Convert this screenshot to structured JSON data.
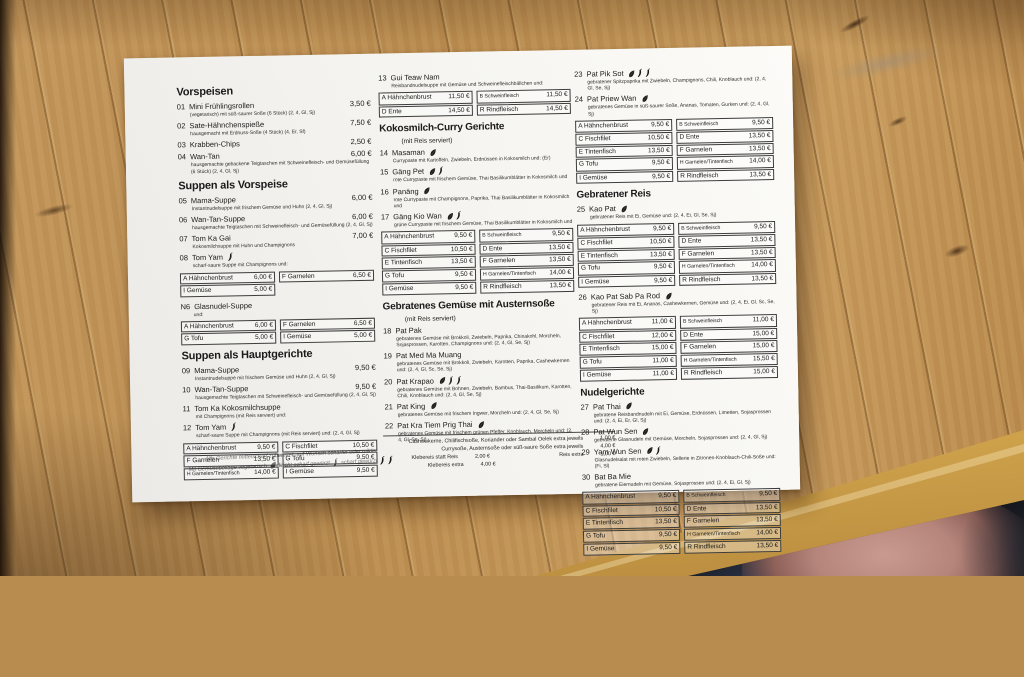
{
  "scene": {
    "wood_color": "#bb8d50",
    "table_edge_color": "#e6bd66",
    "under_table_color": "#121217",
    "knee_skin_color": "#b5857b",
    "paper_color": "#f4f3ef",
    "text_color": "#1b1b1b"
  },
  "menu": {
    "columns": [
      {
        "sections": [
          {
            "title": "Vorspeisen",
            "entries": [
              {
                "kind": "item",
                "num": "01",
                "name": "Mini Frühlingsrollen",
                "price": "3,50 €",
                "desc": "(vegetarisch) mit süß-saurer Soße (6 Stück) (2, 4, Gl, Sj)"
              },
              {
                "kind": "item",
                "num": "02",
                "name": "Sate-Hähnchenspieße",
                "price": "7,50 €",
                "desc": "hausgemacht mit Erdnuss-Soße (4 Stück) (4, Er, Sf)"
              },
              {
                "kind": "item",
                "num": "03",
                "name": "Krabben-Chips",
                "price": "2,50 €"
              },
              {
                "kind": "item",
                "num": "04",
                "name": "Wan-Tan",
                "price": "6,00 €",
                "desc": "hausgemachte gebackene Teigtaschen mit Schweinefleisch- und Gemüsefüllung (6 Stück) (2, 4, Gl, Sj)"
              }
            ]
          },
          {
            "title": "Suppen als Vorspeise",
            "entries": [
              {
                "kind": "item",
                "num": "05",
                "name": "Mama-Suppe",
                "price": "6,00 €",
                "desc": "Instantnudelsuppe mit frischem Gemüse und Huhn (2, 4, Gl, Sj)"
              },
              {
                "kind": "item",
                "num": "06",
                "name": "Wan-Tan-Suppe",
                "price": "6,00 €",
                "desc": "hausgemachte Teigtaschen mit Schweinefleisch- und Gemüsefüllung (2, 4, Gl, Sj)"
              },
              {
                "kind": "item",
                "num": "07",
                "name": "Tom Ka Gai",
                "price": "7,00 €",
                "desc": "Kokosmilchsuppe mit Huhn und Champignons"
              },
              {
                "kind": "item",
                "num": "08",
                "name": "Tom Yam",
                "icons": [
                  "chili-icon"
                ],
                "desc": "scharf-saure Suppe mit Champignons und:"
              },
              {
                "kind": "table",
                "cells": [
                  [
                    "A Hähnchenbrust",
                    "6,00 €"
                  ],
                  [
                    "F Garnelen",
                    "6,50 €"
                  ],
                  [
                    "I Gemüse",
                    "5,00 €"
                  ]
                ]
              },
              {
                "kind": "item",
                "num": "N6",
                "name": "Glasnudel-Suppe",
                "desc": "und:"
              },
              {
                "kind": "table",
                "cells": [
                  [
                    "A Hähnchenbrust",
                    "6,00 €"
                  ],
                  [
                    "F Garnelen",
                    "6,50 €"
                  ],
                  [
                    "G Tofu",
                    "5,00 €"
                  ],
                  [
                    "I Gemüse",
                    "5,00 €"
                  ]
                ]
              }
            ]
          },
          {
            "title": "Suppen als Hauptgerichte",
            "entries": [
              {
                "kind": "item",
                "num": "09",
                "name": "Mama-Suppe",
                "price": "9,50 €",
                "desc": "Instantnudelsuppe mit frischem Gemüse und Huhn (2, 4, Gl, Sj)"
              },
              {
                "kind": "item",
                "num": "10",
                "name": "Wan-Tan-Suppe",
                "price": "9,50 €",
                "desc": "hausgemachte Teigtaschen mit Schweinefleisch- und Gemüsefüllung (2, 4, Gl, Sj)"
              },
              {
                "kind": "item",
                "num": "11",
                "name": "Tom Ka Kokosmilchsuppe",
                "desc": "mit Champignons (mit Reis serviert) und:"
              },
              {
                "kind": "item",
                "num": "12",
                "name": "Tom Yam",
                "icons": [
                  "chili-icon"
                ],
                "desc": "scharf-saure Suppe mit Champignons (mit Reis serviert) und: (2, 4, Gl, Sj)"
              },
              {
                "kind": "table",
                "cells": [
                  [
                    "A Hähnchenbrust",
                    "9,50 €"
                  ],
                  [
                    "C Fischfilet",
                    "10,50 €"
                  ],
                  [
                    "F Garnelen",
                    "13,50 €"
                  ],
                  [
                    "G Tofu",
                    "9,50 €"
                  ],
                  [
                    "H Garnelen/Tintenfisch",
                    "14,00 €"
                  ],
                  [
                    "I Gemüse",
                    "9,50 €"
                  ]
                ]
              }
            ]
          }
        ]
      },
      {
        "sections": [
          {
            "title": null,
            "entries": [
              {
                "kind": "item",
                "num": "13",
                "name": "Gui Teaw Nam",
                "desc": "Reisbandnudelsuppe mit Gemüse und Schweinefleischbällchen und:"
              },
              {
                "kind": "table",
                "cells": [
                  [
                    "A Hähnchenbrust",
                    "11,50 €"
                  ],
                  [
                    "B Schweinfleisch",
                    "11,50 €"
                  ],
                  [
                    "D Ente",
                    "14,50 €"
                  ],
                  [
                    "R Rindfleisch",
                    "14,50 €"
                  ]
                ]
              }
            ]
          },
          {
            "title": "Kokosmilch-Curry Gerichte",
            "subtitle": "(mit Reis serviert)",
            "entries": [
              {
                "kind": "item",
                "num": "14",
                "name": "Masaman",
                "icons": [
                  "leaf-icon"
                ],
                "desc": "Currypaste mit Kartoffeln, Zwiebeln, Erdnüssen in Kokosmilch und: (Er)"
              },
              {
                "kind": "item",
                "num": "15",
                "name": "Gäng Pet",
                "icons": [
                  "leaf-icon",
                  "chili-icon"
                ],
                "desc": "rote Currypaste mit frischem Gemüse, Thai Basilikumblätter in Kokosmilch und"
              },
              {
                "kind": "item",
                "num": "16",
                "name": "Panäng",
                "icons": [
                  "leaf-icon"
                ],
                "desc": "rote Currypaste mit Champignons, Paprika, Thai Basilikumblätter in Kokosmilch und"
              },
              {
                "kind": "item",
                "num": "17",
                "name": "Gäng Kio Wan",
                "icons": [
                  "leaf-icon",
                  "chili-icon"
                ],
                "desc": "grüne Currypaste mit frischem Gemüse, Thai Basilikumblätter in Kokosmilch und"
              },
              {
                "kind": "table",
                "cells": [
                  [
                    "A Hähnchenbrust",
                    "9,50 €"
                  ],
                  [
                    "B Schweinfleisch",
                    "9,50 €"
                  ],
                  [
                    "C Fischfilet",
                    "10,50 €"
                  ],
                  [
                    "D Ente",
                    "13,50 €"
                  ],
                  [
                    "E Tintenfisch",
                    "13,50 €"
                  ],
                  [
                    "F Garnelen",
                    "13,50 €"
                  ],
                  [
                    "G Tofu",
                    "9,50 €"
                  ],
                  [
                    "H Garnelen/Tintenfisch",
                    "14,00 €"
                  ],
                  [
                    "I Gemüse",
                    "9,50 €"
                  ],
                  [
                    "R Rindfleisch",
                    "13,50 €"
                  ]
                ]
              }
            ]
          },
          {
            "title": "Gebratenes Gemüse mit Austernsoße",
            "subtitle": "(mit Reis serviert)",
            "entries": [
              {
                "kind": "item",
                "num": "18",
                "name": "Pat Pak",
                "desc": "gebratenes Gemüse mit Brokkoli, Zwiebeln, Paprika, Chinakohl, Morcheln, Sojasprossen, Karotten, Champignons und: (2, 4, Gl, Se, Sj)"
              },
              {
                "kind": "item",
                "num": "19",
                "name": "Pat Med Ma Muang",
                "desc": "gebratenes Gemüse mit Brokkoli, Zwiebeln, Karotten, Paprika, Cashewkernen und: (2, 4, Gl, Sc, Se, Sj)"
              },
              {
                "kind": "item",
                "num": "20",
                "name": "Pat Krapao",
                "icons": [
                  "leaf-icon",
                  "chili-icon",
                  "chili-icon"
                ],
                "desc": "gebratenes Gemüse mit Bohnen, Zwiebeln, Bambus, Thai-Basilikum, Karotten, Chili, Knoblauch und: (2, 4, Gl, Se, Sj)"
              },
              {
                "kind": "item",
                "num": "21",
                "name": "Pat King",
                "icons": [
                  "leaf-icon"
                ],
                "desc": "gebratenes Gemüse mit frischem Ingwer, Morcheln und: (2, 4, Gl, Se, Sj)"
              },
              {
                "kind": "item",
                "num": "22",
                "name": "Pat Kra Tiem Prig Thai",
                "icons": [
                  "leaf-icon"
                ],
                "desc": "gebratenes Gemüse mit frischem grünen Pfeffer, Knoblauch, Morcheln und: (2, 4, Gl, Se, Sj)"
              }
            ]
          }
        ]
      },
      {
        "sections": [
          {
            "title": null,
            "entries": [
              {
                "kind": "item",
                "num": "23",
                "name": "Pat Pik Sot",
                "icons": [
                  "leaf-icon",
                  "chili-icon",
                  "chili-icon"
                ],
                "desc": "gebratener Spitzpaprika mit Zwiebeln, Champignons, Chili, Knoblauch und: (2, 4, Gl, Se, Sj)"
              },
              {
                "kind": "item",
                "num": "24",
                "name": "Pat Priew Wan",
                "icons": [
                  "leaf-icon"
                ],
                "desc": "gebratenes Gemüse in süß-saurer Soße, Ananas, Tomaten, Gurken und: (2, 4, Gl, Sj)"
              },
              {
                "kind": "table",
                "cells": [
                  [
                    "A Hähnchenbrust",
                    "9,50 €"
                  ],
                  [
                    "B Schweinfleisch",
                    "9,50 €"
                  ],
                  [
                    "C Fischfilet",
                    "10,50 €"
                  ],
                  [
                    "D Ente",
                    "13,50 €"
                  ],
                  [
                    "E Tintenfisch",
                    "13,50 €"
                  ],
                  [
                    "F Garnelen",
                    "13,50 €"
                  ],
                  [
                    "G Tofu",
                    "9,50 €"
                  ],
                  [
                    "H Garnelen/Tintenfisch",
                    "14,00 €"
                  ],
                  [
                    "I Gemüse",
                    "9,50 €"
                  ],
                  [
                    "R Rindfleisch",
                    "13,50 €"
                  ]
                ]
              }
            ]
          },
          {
            "title": "Gebratener Reis",
            "entries": [
              {
                "kind": "item",
                "num": "25",
                "name": "Kao Pat",
                "icons": [
                  "leaf-icon"
                ],
                "desc": "gebratener Reis mit Ei, Gemüse und: (2, 4, Ei, Gl, Se, Sj)"
              },
              {
                "kind": "table",
                "cells": [
                  [
                    "A Hähnchenbrust",
                    "9,50 €"
                  ],
                  [
                    "B Schweinfleisch",
                    "9,50 €"
                  ],
                  [
                    "C Fischfilet",
                    "10,50 €"
                  ],
                  [
                    "D Ente",
                    "13,50 €"
                  ],
                  [
                    "E Tintenfisch",
                    "13,50 €"
                  ],
                  [
                    "F Garnelen",
                    "13,50 €"
                  ],
                  [
                    "G Tofu",
                    "9,50 €"
                  ],
                  [
                    "H Garnelen/Tintenfisch",
                    "14,00 €"
                  ],
                  [
                    "I Gemüse",
                    "9,50 €"
                  ],
                  [
                    "R Rindfleisch",
                    "13,50 €"
                  ]
                ]
              },
              {
                "kind": "item",
                "num": "26",
                "name": "Kao Pat Sab Pa Rod",
                "icons": [
                  "leaf-icon"
                ],
                "desc": "gebratener Reis mit Ei, Ananas, Cashewkernen, Gemüse und: (2, 4, Ei, Gl, Sc, Se, Sj)"
              },
              {
                "kind": "table",
                "cells": [
                  [
                    "A Hähnchenbrust",
                    "11,00 €"
                  ],
                  [
                    "B Schweinfleisch",
                    "11,00 €"
                  ],
                  [
                    "C Fischfilet",
                    "12,00 €"
                  ],
                  [
                    "D Ente",
                    "15,00 €"
                  ],
                  [
                    "E Tintenfisch",
                    "15,00 €"
                  ],
                  [
                    "F Garnelen",
                    "15,00 €"
                  ],
                  [
                    "G Tofu",
                    "11,00 €"
                  ],
                  [
                    "H Garnelen/Tintenfisch",
                    "15,50 €"
                  ],
                  [
                    "I Gemüse",
                    "11,00 €"
                  ],
                  [
                    "R Rindfleisch",
                    "15,00 €"
                  ]
                ]
              }
            ]
          },
          {
            "title": "Nudelgerichte",
            "entries": [
              {
                "kind": "item",
                "num": "27",
                "name": "Pat Thai",
                "icons": [
                  "leaf-icon"
                ],
                "desc": "gebratene Reisbandnudeln mit Ei, Gemüse, Erdnüssen, Limetten, Sojasprossen und: (2, 4, Ei, Er, Gl, Sj)"
              },
              {
                "kind": "item",
                "num": "28",
                "name": "Pat Wun Sen",
                "icons": [
                  "leaf-icon"
                ],
                "desc": "gebratene Glasnudeln mit Gemüse, Morcheln, Sojasprossen und: (2, 4, Gl, Sj)"
              },
              {
                "kind": "item",
                "num": "29",
                "name": "Yam Wun Sen",
                "icons": [
                  "leaf-icon",
                  "chili-icon"
                ],
                "desc": "Glasnudelsalat mit roten Zwiebeln, Sellerie in Zitronen-Knoblauch-Chili-Soße und: (Fi, Sl)"
              },
              {
                "kind": "item",
                "num": "30",
                "name": "Bat Ba Mie",
                "desc": "gebratene Eiernudeln mit Gemüse, Sojasprossen und: (2, 4, Ei, Gl, Sj)"
              },
              {
                "kind": "table",
                "cells": [
                  [
                    "A Hähnchenbrust",
                    "9,50 €"
                  ],
                  [
                    "B Schweinfleisch",
                    "9,50 €"
                  ],
                  [
                    "C Fischfilet",
                    "10,50 €"
                  ],
                  [
                    "D Ente",
                    "13,50 €"
                  ],
                  [
                    "E Tintenfisch",
                    "13,50 €"
                  ],
                  [
                    "F Garnelen",
                    "13,50 €"
                  ],
                  [
                    "G Tofu",
                    "9,50 €"
                  ],
                  [
                    "H Garnelen/Tintenfisch",
                    "14,00 €"
                  ],
                  [
                    "I Gemüse",
                    "9,50 €"
                  ],
                  [
                    "R Rindfleisch",
                    "13,50 €"
                  ]
                ]
              }
            ]
          }
        ]
      }
    ],
    "footnotes": {
      "line1": "Alle Gerichte mittelscharf zubereitet, auf Wunsch schärfer oder milder",
      "line2_segments": [
        {
          "t": "Mit Gemüsebeilage vegetarisch "
        },
        {
          "icon": "leaf-icon"
        },
        {
          "t": " leicht scharf gewürzt "
        },
        {
          "icon": "chili-icon"
        },
        {
          "t": " scharf gewürzt "
        },
        {
          "icon": "chili-icon"
        },
        {
          "icon": "chili-icon"
        }
      ]
    },
    "extras": {
      "rows": [
        {
          "left": "Cashewkerne, Chilifischsoße, Koriander oder Sambal Oelek extra jeweils",
          "lprice": "1,00 €",
          "align": "right"
        },
        {
          "left": "Currysoße, Austernsoße oder süß-saure Soße extra jeweils",
          "lprice": "4,00 €",
          "align": "right"
        },
        {
          "left": "Klebereis statt Reis",
          "lprice": "2,00 €",
          "right": "Reis extra",
          "rprice": "1,00 €",
          "align": "pair"
        },
        {
          "left": "Klebereis extra",
          "lprice": "4,00 €",
          "align": "indent"
        }
      ]
    }
  }
}
